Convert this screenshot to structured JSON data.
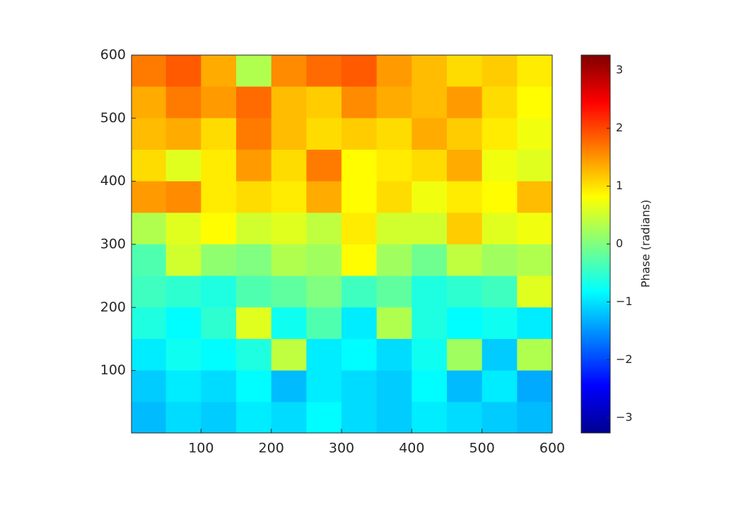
{
  "chart_data": {
    "type": "heatmap",
    "colorbar_label": "Phase (radians)",
    "colormap": "jet",
    "xlim": [
      1,
      600
    ],
    "ylim": [
      1,
      600
    ],
    "xticks": [
      100,
      200,
      300,
      400,
      500,
      600
    ],
    "yticks": [
      100,
      200,
      300,
      400,
      500,
      600
    ],
    "clim": [
      -3.1416,
      3.1416
    ],
    "cticks": [
      {
        "value": -3,
        "label": "−3"
      },
      {
        "value": -2,
        "label": "−2"
      },
      {
        "value": -1,
        "label": "−1"
      },
      0,
      1,
      2,
      3
    ],
    "x": [
      25,
      75,
      125,
      175,
      225,
      275,
      325,
      375,
      425,
      475,
      525,
      575
    ],
    "y": [
      575,
      525,
      475,
      425,
      375,
      325,
      275,
      225,
      175,
      125,
      75,
      25
    ],
    "z": [
      [
        1.6,
        1.8,
        1.3,
        0.3,
        1.5,
        1.7,
        1.8,
        1.4,
        1.2,
        1.0,
        1.1,
        0.9
      ],
      [
        1.3,
        1.6,
        1.4,
        1.7,
        1.2,
        1.1,
        1.5,
        1.3,
        1.2,
        1.4,
        1.0,
        0.8
      ],
      [
        1.2,
        1.3,
        1.0,
        1.6,
        1.2,
        1.0,
        1.1,
        1.0,
        1.3,
        1.1,
        0.9,
        0.7
      ],
      [
        1.0,
        0.6,
        0.9,
        1.4,
        1.0,
        1.6,
        0.8,
        0.9,
        1.0,
        1.3,
        0.7,
        0.6
      ],
      [
        1.4,
        1.5,
        0.9,
        1.0,
        0.9,
        1.3,
        0.8,
        1.0,
        0.7,
        0.9,
        0.8,
        1.2
      ],
      [
        0.3,
        0.6,
        0.8,
        0.5,
        0.6,
        0.4,
        0.9,
        0.5,
        0.5,
        1.1,
        0.6,
        0.7
      ],
      [
        -0.3,
        0.5,
        0.1,
        0.0,
        0.3,
        0.2,
        0.8,
        0.2,
        -0.1,
        0.4,
        0.2,
        0.3
      ],
      [
        -0.4,
        -0.5,
        -0.6,
        -0.3,
        -0.2,
        0.0,
        -0.4,
        -0.2,
        -0.6,
        -0.5,
        -0.4,
        0.6
      ],
      [
        -0.6,
        -0.8,
        -0.5,
        0.6,
        -0.7,
        -0.3,
        -0.9,
        0.3,
        -0.6,
        -0.8,
        -0.7,
        -0.9
      ],
      [
        -0.9,
        -0.7,
        -0.8,
        -0.6,
        0.4,
        -0.9,
        -0.8,
        -1.0,
        -0.7,
        0.2,
        -1.1,
        0.3
      ],
      [
        -1.1,
        -0.9,
        -1.0,
        -0.8,
        -1.2,
        -0.9,
        -1.0,
        -1.1,
        -0.8,
        -1.2,
        -0.9,
        -1.3
      ],
      [
        -1.2,
        -1.0,
        -1.1,
        -0.9,
        -1.0,
        -0.8,
        -1.0,
        -1.1,
        -0.9,
        -1.0,
        -1.1,
        -1.2
      ]
    ]
  }
}
